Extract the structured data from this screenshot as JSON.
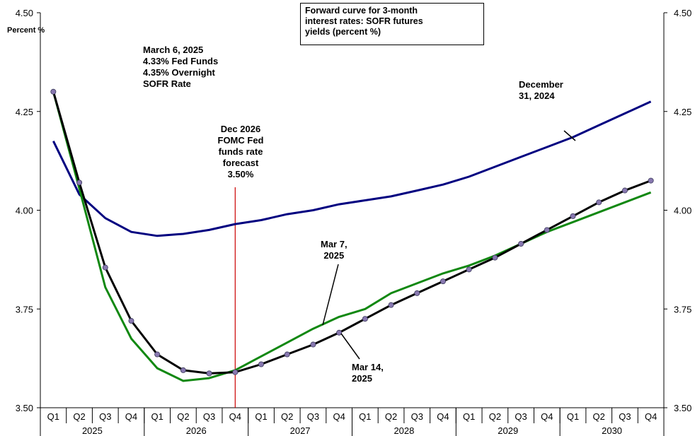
{
  "chart_data": {
    "type": "line",
    "title": "Forward curve for 3-month interest rates: SOFR futures yields (percent %)",
    "ylabel": "Percent %",
    "ylim": [
      3.5,
      4.5
    ],
    "yticks": [
      "3.50",
      "3.75",
      "4.00",
      "4.25",
      "4.50"
    ],
    "quarters": [
      "Q1",
      "Q2",
      "Q3",
      "Q4",
      "Q1",
      "Q2",
      "Q3",
      "Q4",
      "Q1",
      "Q2",
      "Q3",
      "Q4",
      "Q1",
      "Q2",
      "Q3",
      "Q4",
      "Q1",
      "Q2",
      "Q3",
      "Q4",
      "Q1",
      "Q2",
      "Q3",
      "Q4"
    ],
    "years": [
      "2025",
      "2026",
      "2027",
      "2028",
      "2029",
      "2030"
    ],
    "grid": false,
    "series": [
      {
        "name": "December 31, 2024",
        "color": "#000080",
        "values": [
          4.175,
          4.04,
          3.98,
          3.945,
          3.935,
          3.94,
          3.95,
          3.965,
          3.975,
          3.99,
          4.0,
          4.015,
          4.025,
          4.035,
          4.05,
          4.065,
          4.085,
          4.11,
          4.135,
          4.16,
          4.185,
          4.215,
          4.245,
          4.275
        ]
      },
      {
        "name": "Mar 7, 2025",
        "color": "#118811",
        "values": [
          4.3,
          4.055,
          3.805,
          3.675,
          3.6,
          3.568,
          3.575,
          3.595,
          3.63,
          3.665,
          3.7,
          3.73,
          3.75,
          3.79,
          3.815,
          3.84,
          3.86,
          3.885,
          3.915,
          3.945,
          3.97,
          3.995,
          4.02,
          4.045
        ]
      },
      {
        "name": "Mar 14, 2025",
        "color": "#000000",
        "marker_color": "#8878b0",
        "values": [
          4.3,
          4.07,
          3.855,
          3.72,
          3.635,
          3.595,
          3.587,
          3.59,
          3.61,
          3.635,
          3.66,
          3.69,
          3.725,
          3.76,
          3.79,
          3.82,
          3.85,
          3.88,
          3.915,
          3.95,
          3.985,
          4.02,
          4.05,
          4.075
        ]
      }
    ],
    "annotations": {
      "title_box": [
        "Forward curve for 3-month",
        "interest rates: SOFR futures",
        "yields (percent %)"
      ],
      "rates": [
        "March 6, 2025",
        "4.33% Fed Funds",
        "4.35% Overnight",
        "SOFR Rate"
      ],
      "fomc": [
        "Dec 2026",
        "FOMC Fed",
        "funds rate",
        "forecast",
        "3.50%"
      ],
      "dec_label": [
        "December",
        "31, 2024"
      ],
      "mar7_label": [
        "Mar 7,",
        "2025"
      ],
      "mar14_label": [
        "Mar 14,",
        "2025"
      ]
    },
    "fomc_line_color": "#cc0000"
  }
}
